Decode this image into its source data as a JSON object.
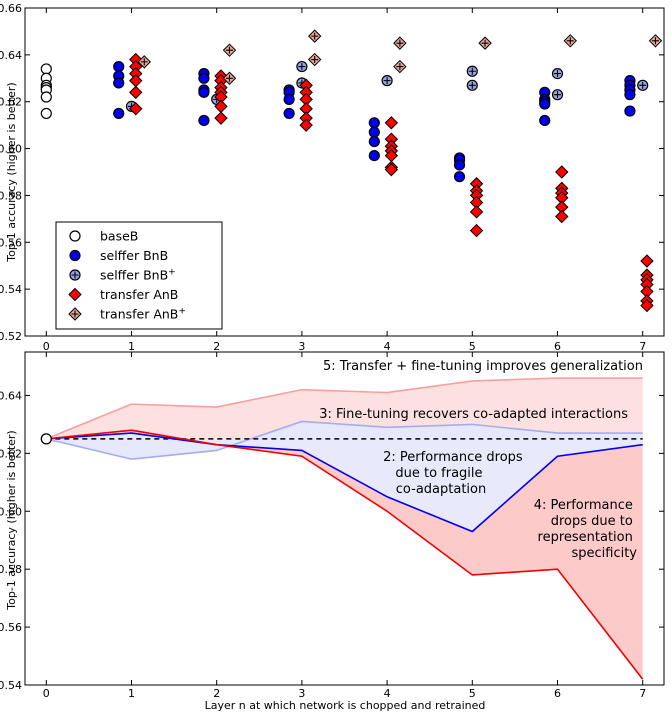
{
  "chart_data": [
    {
      "type": "scatter",
      "ylabel": "Top-1 accuracy (higher is better)",
      "xlim": [
        -0.25,
        7.25
      ],
      "ylim": [
        0.52,
        0.66
      ],
      "xticks": [
        "0",
        "1",
        "2",
        "3",
        "4",
        "5",
        "6",
        "7"
      ],
      "yticks": [
        "0.52",
        "0.54",
        "0.56",
        "0.58",
        "0.60",
        "0.62",
        "0.64",
        "0.66"
      ],
      "grid": false,
      "legend_position": "bottom-left",
      "series": [
        {
          "name": "baseB",
          "marker": "circle-open",
          "color": "#ffffff",
          "edge": "#000000",
          "offset": 0,
          "points": [
            [
              0,
              0.634
            ],
            [
              0,
              0.63
            ],
            [
              0,
              0.627
            ],
            [
              0,
              0.626
            ],
            [
              0,
              0.625
            ],
            [
              0,
              0.622
            ],
            [
              0,
              0.615
            ]
          ]
        },
        {
          "name": "selffer BnB",
          "marker": "circle",
          "color": "#0000ee",
          "edge": "#000000",
          "offset": -0.15,
          "points": [
            [
              1,
              0.635
            ],
            [
              1,
              0.631
            ],
            [
              1,
              0.628
            ],
            [
              1,
              0.615
            ],
            [
              2,
              0.632
            ],
            [
              2,
              0.63
            ],
            [
              2,
              0.625
            ],
            [
              2,
              0.624
            ],
            [
              2,
              0.612
            ],
            [
              3,
              0.625
            ],
            [
              3,
              0.624
            ],
            [
              3,
              0.621
            ],
            [
              3,
              0.615
            ],
            [
              4,
              0.611
            ],
            [
              4,
              0.607
            ],
            [
              4,
              0.603
            ],
            [
              4,
              0.597
            ],
            [
              5,
              0.596
            ],
            [
              5,
              0.595
            ],
            [
              5,
              0.593
            ],
            [
              5,
              0.588
            ],
            [
              6,
              0.624
            ],
            [
              6,
              0.621
            ],
            [
              6,
              0.62
            ],
            [
              6,
              0.619
            ],
            [
              6,
              0.612
            ],
            [
              7,
              0.629
            ],
            [
              7,
              0.627
            ],
            [
              7,
              0.625
            ],
            [
              7,
              0.623
            ],
            [
              7,
              0.616
            ]
          ]
        },
        {
          "name": "selffer BnB+",
          "marker": "circle-plus",
          "color": "#9aa4e6",
          "edge": "#000000",
          "offset": 0,
          "points": [
            [
              1,
              0.618
            ],
            [
              2,
              0.621
            ],
            [
              3,
              0.635
            ],
            [
              3,
              0.628
            ],
            [
              4,
              0.629
            ],
            [
              5,
              0.633
            ],
            [
              5,
              0.627
            ],
            [
              6,
              0.632
            ],
            [
              6,
              0.623
            ],
            [
              7,
              0.627
            ]
          ]
        },
        {
          "name": "transfer AnB",
          "marker": "diamond",
          "color": "#ff0000",
          "edge": "#000000",
          "offset": 0.05,
          "points": [
            [
              1,
              0.638
            ],
            [
              1,
              0.635
            ],
            [
              1,
              0.632
            ],
            [
              1,
              0.629
            ],
            [
              1,
              0.624
            ],
            [
              1,
              0.617
            ],
            [
              2,
              0.631
            ],
            [
              2,
              0.629
            ],
            [
              2,
              0.626
            ],
            [
              2,
              0.624
            ],
            [
              2,
              0.622
            ],
            [
              2,
              0.618
            ],
            [
              2,
              0.613
            ],
            [
              3,
              0.627
            ],
            [
              3,
              0.624
            ],
            [
              3,
              0.621
            ],
            [
              3,
              0.617
            ],
            [
              3,
              0.613
            ],
            [
              3,
              0.61
            ],
            [
              4,
              0.611
            ],
            [
              4,
              0.604
            ],
            [
              4,
              0.601
            ],
            [
              4,
              0.599
            ],
            [
              4,
              0.597
            ],
            [
              4,
              0.592
            ],
            [
              4,
              0.591
            ],
            [
              5,
              0.585
            ],
            [
              5,
              0.582
            ],
            [
              5,
              0.58
            ],
            [
              5,
              0.577
            ],
            [
              5,
              0.573
            ],
            [
              5,
              0.565
            ],
            [
              6,
              0.59
            ],
            [
              6,
              0.583
            ],
            [
              6,
              0.581
            ],
            [
              6,
              0.579
            ],
            [
              6,
              0.575
            ],
            [
              6,
              0.571
            ],
            [
              7,
              0.552
            ],
            [
              7,
              0.546
            ],
            [
              7,
              0.544
            ],
            [
              7,
              0.542
            ],
            [
              7,
              0.539
            ],
            [
              7,
              0.535
            ],
            [
              7,
              0.533
            ]
          ]
        },
        {
          "name": "transfer AnB+",
          "marker": "diamond-plus",
          "color": "#e8a89a",
          "edge": "#000000",
          "offset": 0.15,
          "points": [
            [
              1,
              0.637
            ],
            [
              2,
              0.642
            ],
            [
              2,
              0.63
            ],
            [
              3,
              0.648
            ],
            [
              3,
              0.638
            ],
            [
              4,
              0.645
            ],
            [
              4,
              0.635
            ],
            [
              5,
              0.645
            ],
            [
              6,
              0.646
            ],
            [
              7,
              0.646
            ]
          ]
        }
      ]
    },
    {
      "type": "line",
      "xlabel": "Layer n at which network is chopped and retrained",
      "ylabel": "Top-1 accuracy (higher is better)",
      "xlim": [
        -0.25,
        7.25
      ],
      "ylim": [
        0.54,
        0.655
      ],
      "xticks": [
        "0",
        "1",
        "2",
        "3",
        "4",
        "5",
        "6",
        "7"
      ],
      "yticks": [
        "0.54",
        "0.56",
        "0.58",
        "0.60",
        "0.62",
        "0.64"
      ],
      "x": [
        0,
        1,
        2,
        3,
        4,
        5,
        6,
        7
      ],
      "base_value": 0.625,
      "series": [
        {
          "key": "transfer_ft",
          "color": "#f6a0a0",
          "values": [
            0.625,
            0.637,
            0.636,
            0.642,
            0.641,
            0.645,
            0.646,
            0.646
          ]
        },
        {
          "key": "selffer_ft",
          "color": "#a6acf0",
          "values": [
            0.625,
            0.618,
            0.621,
            0.631,
            0.629,
            0.63,
            0.627,
            0.627
          ]
        },
        {
          "key": "selffer",
          "color": "#0000ee",
          "values": [
            0.625,
            0.627,
            0.623,
            0.621,
            0.605,
            0.593,
            0.619,
            0.623
          ]
        },
        {
          "key": "transfer",
          "color": "#ee0000",
          "values": [
            0.625,
            0.628,
            0.623,
            0.619,
            0.6,
            0.578,
            0.58,
            0.542
          ]
        }
      ],
      "annotations": {
        "a5": "5: Transfer + fine-tuning improves generalization",
        "a3": "3: Fine-tuning recovers co-adapted interactions",
        "a2": [
          "2: Performance drops",
          "due to fragile",
          "co-adaptation"
        ],
        "a4": [
          "4: Performance",
          "drops due to",
          "representation",
          "specificity"
        ]
      }
    }
  ]
}
